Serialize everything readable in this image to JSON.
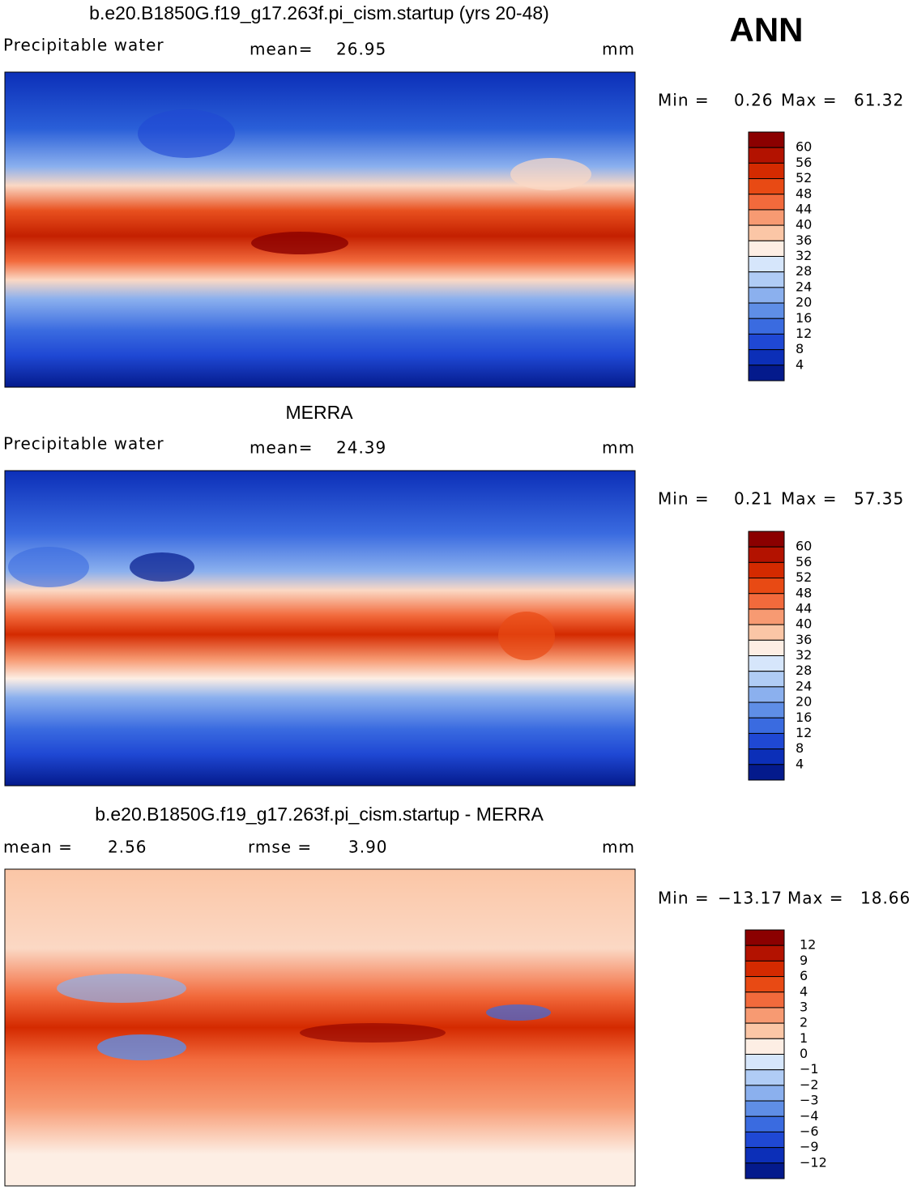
{
  "season": "ANN",
  "panels": [
    {
      "title": "b.e20.B1850G.f19_g17.263f.pi_cism.startup (yrs 20-48)",
      "variable": "Precipitable water",
      "mean_label": "mean=",
      "mean": "26.95",
      "units": "mm",
      "min_label": "Min =",
      "min": "0.26",
      "max_label": "Max =",
      "max": "61.32",
      "colorbar": {
        "labels": [
          "60",
          "56",
          "52",
          "48",
          "44",
          "40",
          "36",
          "32",
          "28",
          "24",
          "20",
          "16",
          "12",
          "8",
          "4"
        ],
        "colors": [
          "#8b0000",
          "#b31200",
          "#d42a00",
          "#e84a14",
          "#f26a3c",
          "#f79a72",
          "#fbc6a6",
          "#fdeee4",
          "#d6e6fb",
          "#b0ccf5",
          "#8bb0ee",
          "#5f8ee6",
          "#3a6be0",
          "#1f48d4",
          "#0c2fb8",
          "#041a8c"
        ]
      }
    },
    {
      "title": "MERRA",
      "variable": "Precipitable water",
      "mean_label": "mean=",
      "mean": "24.39",
      "units": "mm",
      "min_label": "Min =",
      "min": "0.21",
      "max_label": "Max =",
      "max": "57.35",
      "colorbar": {
        "labels": [
          "60",
          "56",
          "52",
          "48",
          "44",
          "40",
          "36",
          "32",
          "28",
          "24",
          "20",
          "16",
          "12",
          "8",
          "4"
        ],
        "colors": [
          "#8b0000",
          "#b31200",
          "#d42a00",
          "#e84a14",
          "#f26a3c",
          "#f79a72",
          "#fbc6a6",
          "#fdeee4",
          "#d6e6fb",
          "#b0ccf5",
          "#8bb0ee",
          "#5f8ee6",
          "#3a6be0",
          "#1f48d4",
          "#0c2fb8",
          "#041a8c"
        ]
      }
    },
    {
      "title": "b.e20.B1850G.f19_g17.263f.pi_cism.startup - MERRA",
      "mean_label": "mean =",
      "mean": "2.56",
      "rmse_label": "rmse =",
      "rmse": "3.90",
      "units": "mm",
      "min_label": "Min =",
      "min": "−13.17",
      "max_label": "Max =",
      "max": "18.66",
      "colorbar": {
        "labels": [
          "12",
          "9",
          "6",
          "4",
          "3",
          "2",
          "1",
          "0",
          "−1",
          "−2",
          "−3",
          "−4",
          "−6",
          "−9",
          "−12"
        ],
        "colors": [
          "#8b0000",
          "#b31200",
          "#d42a00",
          "#e84a14",
          "#f26a3c",
          "#f79a72",
          "#fbc6a6",
          "#fdeee4",
          "#d6e6fb",
          "#b0ccf5",
          "#8bb0ee",
          "#5f8ee6",
          "#3a6be0",
          "#1f48d4",
          "#0c2fb8",
          "#041a8c"
        ]
      }
    }
  ]
}
